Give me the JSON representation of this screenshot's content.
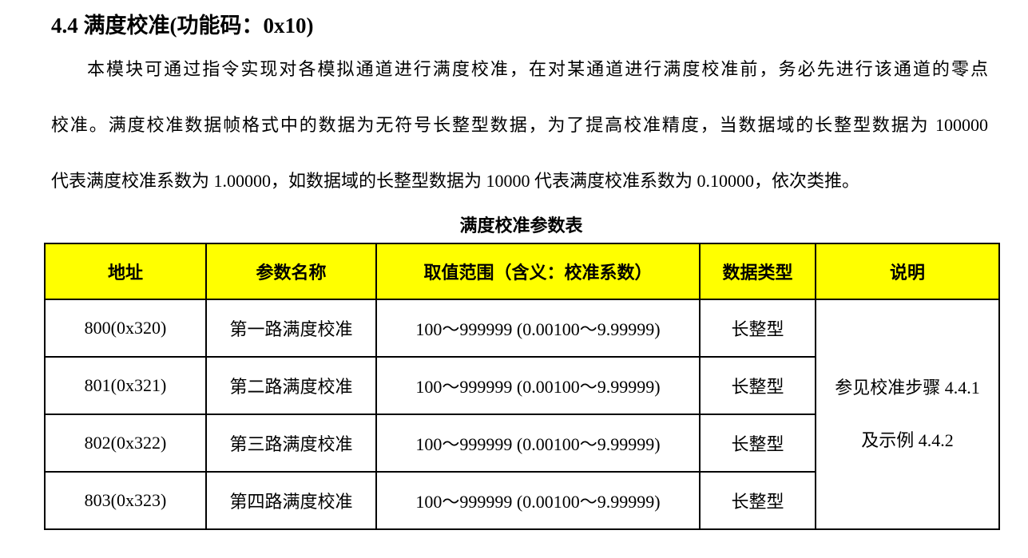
{
  "page": {
    "heading": "4.4 满度校准(功能码：0x10)",
    "paragraph_lines": [
      "本模块可通过指令实现对各模拟通道进行满度校准，在对某通道进行满度校准前，务必先进行该通道的零点",
      "校准。满度校准数据帧格式中的数据为无符号长整型数据，为了提高校准精度，当数据域的长整型数据为 100000",
      "代表满度校准系数为 1.00000，如数据域的长整型数据为 10000 代表满度校准系数为 0.10000，依次类推。"
    ],
    "table_title": "满度校准参数表"
  },
  "colors": {
    "header_background": "#FFFF00",
    "border": "#000000",
    "text": "#000000"
  },
  "table": {
    "columns": [
      "地址",
      "参数名称",
      "取值范围（含义：校准系数）",
      "数据类型",
      "说明"
    ],
    "rows": [
      {
        "address": "800(0x320)",
        "param": "第一路满度校准",
        "range": "100～999999 (0.00100～9.99999)",
        "type": "长整型"
      },
      {
        "address": "801(0x321)",
        "param": "第二路满度校准",
        "range": "100～999999 (0.00100～9.99999)",
        "type": "长整型"
      },
      {
        "address": "802(0x322)",
        "param": "第三路满度校准",
        "range": "100～999999 (0.00100～9.99999)",
        "type": "长整型"
      },
      {
        "address": "803(0x323)",
        "param": "第四路满度校准",
        "range": "100～999999 (0.00100～9.99999)",
        "type": "长整型"
      }
    ],
    "note_line1": "参见校准步骤 4.4.1",
    "note_line2": "及示例 4.4.2"
  }
}
